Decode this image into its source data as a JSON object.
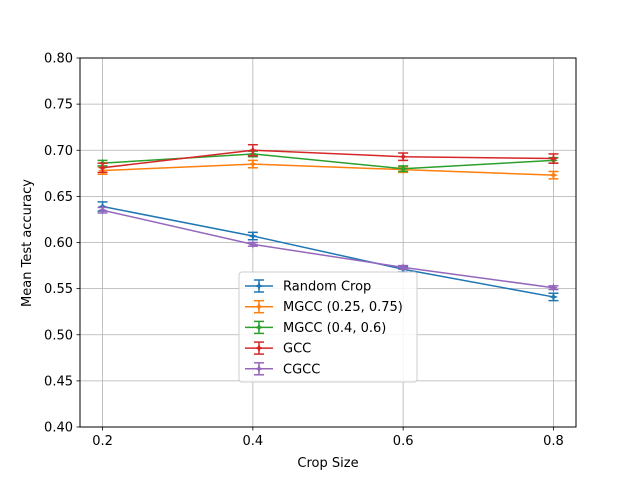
{
  "chart_data": {
    "type": "line",
    "title": "",
    "xlabel": "Crop Size",
    "ylabel": "Mean Test accuracy",
    "x": [
      0.2,
      0.4,
      0.6,
      0.8
    ],
    "xlim": [
      0.17,
      0.83
    ],
    "ylim": [
      0.4,
      0.8
    ],
    "x_ticks": [
      "0.2",
      "0.4",
      "0.6",
      "0.8"
    ],
    "y_ticks": [
      "0.40",
      "0.45",
      "0.50",
      "0.55",
      "0.60",
      "0.65",
      "0.70",
      "0.75",
      "0.80"
    ],
    "grid": true,
    "legend_position": "lower-center",
    "series": [
      {
        "name": "Random Crop",
        "color": "#1f77b4",
        "values": [
          0.639,
          0.607,
          0.571,
          0.541
        ],
        "errors": [
          0.005,
          0.004,
          0.003,
          0.004
        ]
      },
      {
        "name": "MGCC (0.25, 0.75)",
        "color": "#ff7f0e",
        "values": [
          0.678,
          0.685,
          0.679,
          0.673
        ],
        "errors": [
          0.004,
          0.004,
          0.003,
          0.004
        ]
      },
      {
        "name": "MGCC (0.4, 0.6)",
        "color": "#2ca02c",
        "values": [
          0.686,
          0.696,
          0.68,
          0.689
        ],
        "errors": [
          0.003,
          0.003,
          0.003,
          0.003
        ]
      },
      {
        "name": "GCC",
        "color": "#d62728",
        "values": [
          0.681,
          0.7,
          0.693,
          0.691
        ],
        "errors": [
          0.005,
          0.006,
          0.004,
          0.005
        ]
      },
      {
        "name": "CGCC",
        "color": "#9467bd",
        "values": [
          0.635,
          0.598,
          0.573,
          0.551
        ],
        "errors": [
          0.003,
          0.002,
          0.002,
          0.002
        ]
      }
    ]
  }
}
